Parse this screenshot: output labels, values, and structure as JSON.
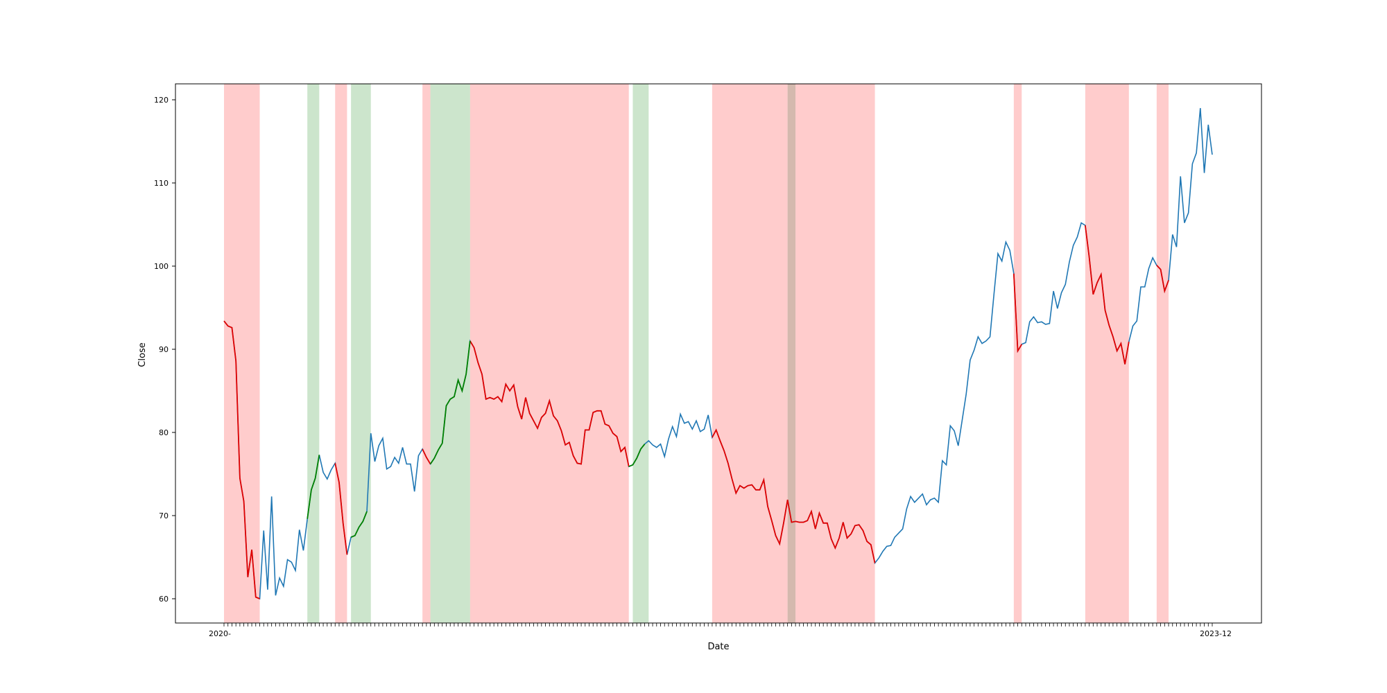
{
  "chart_data": {
    "type": "line",
    "xlabel": "Date",
    "ylabel": "Close",
    "ylim": [
      57,
      122
    ],
    "yticks": [
      60,
      70,
      80,
      90,
      100,
      110,
      120
    ],
    "x_first_label": "2020-",
    "x_last_label": "2023-12",
    "legend": "none",
    "grid": false,
    "colors": {
      "normal": "#1f77b4",
      "down_segment": "#e00000",
      "up_segment": "#008000",
      "down_band": "#ff9999",
      "up_band": "#99cc99"
    },
    "close": [
      93.4,
      92.8,
      92.6,
      88.6,
      74.5,
      71.7,
      62.6,
      65.9,
      60.2,
      60.0,
      68.2,
      61.1,
      72.3,
      60.4,
      62.5,
      61.5,
      64.7,
      64.4,
      63.4,
      68.3,
      65.8,
      69.6,
      73.1,
      74.5,
      77.3,
      75.2,
      74.4,
      75.5,
      76.3,
      74.0,
      69.1,
      65.3,
      67.4,
      67.6,
      68.6,
      69.3,
      70.5,
      79.9,
      76.5,
      78.4,
      79.3,
      75.6,
      75.9,
      77.0,
      76.3,
      78.2,
      76.2,
      76.2,
      72.9,
      77.2,
      78.0,
      77.0,
      76.2,
      76.9,
      77.9,
      78.7,
      83.2,
      84.0,
      84.3,
      86.3,
      85.0,
      87.0,
      91.0,
      90.2,
      88.4,
      87.0,
      84.0,
      84.2,
      84.0,
      84.3,
      83.7,
      85.8,
      85.0,
      85.7,
      83.1,
      81.6,
      84.2,
      82.3,
      81.4,
      80.5,
      81.8,
      82.3,
      83.8,
      82.0,
      81.4,
      80.2,
      78.5,
      78.8,
      77.2,
      76.3,
      76.2,
      80.3,
      80.3,
      82.4,
      82.6,
      82.6,
      81.0,
      80.8,
      79.9,
      79.5,
      77.7,
      78.2,
      75.9,
      76.1,
      76.9,
      78.0,
      78.6,
      79.0,
      78.5,
      78.2,
      78.6,
      77.1,
      79.2,
      80.7,
      79.5,
      82.2,
      81.1,
      81.3,
      80.4,
      81.4,
      80.1,
      80.4,
      82.1,
      79.4,
      80.3,
      79.0,
      77.8,
      76.3,
      74.4,
      72.7,
      73.6,
      73.3,
      73.6,
      73.7,
      73.1,
      73.1,
      74.3,
      71.1,
      69.4,
      67.6,
      66.6,
      69.1,
      71.9,
      69.2,
      69.3,
      69.2,
      69.2,
      69.4,
      70.5,
      68.4,
      70.3,
      69.1,
      69.1,
      67.2,
      66.1,
      67.3,
      69.2,
      67.3,
      67.8,
      68.8,
      68.9,
      68.2,
      66.9,
      66.5,
      64.3,
      64.9,
      65.7,
      66.3,
      66.4,
      67.4,
      67.9,
      68.4,
      70.8,
      72.3,
      71.6,
      72.1,
      72.6,
      71.3,
      71.9,
      72.1,
      71.6,
      76.6,
      76.1,
      80.8,
      80.2,
      78.4,
      81.5,
      84.6,
      88.7,
      89.9,
      91.5,
      90.7,
      91.0,
      91.5,
      96.6,
      101.5,
      100.6,
      102.9,
      101.9,
      99.1,
      89.8,
      90.6,
      90.8,
      93.3,
      93.9,
      93.2,
      93.3,
      93.0,
      93.1,
      97.0,
      94.9,
      96.8,
      97.8,
      100.5,
      102.5,
      103.5,
      105.2,
      104.9,
      101.1,
      96.6,
      98.0,
      99.0,
      94.7,
      92.9,
      91.5,
      89.8,
      90.7,
      88.2,
      90.9,
      92.8,
      93.4,
      97.5,
      97.5,
      99.7,
      101.0,
      100.1,
      99.6,
      97.0,
      98.3,
      103.8,
      102.3,
      110.8,
      105.2,
      106.4,
      112.3,
      113.6,
      119.0,
      111.2,
      117.0,
      113.4
    ],
    "down_segments": [
      [
        0,
        9
      ],
      [
        28,
        31
      ],
      [
        50,
        52
      ],
      [
        62,
        102
      ],
      [
        123,
        142
      ],
      [
        142,
        164
      ],
      [
        199,
        201
      ],
      [
        217,
        228
      ],
      [
        235,
        238
      ]
    ],
    "up_segments": [
      [
        21,
        24
      ],
      [
        32,
        36
      ],
      [
        52,
        62
      ],
      [
        102,
        106
      ]
    ],
    "down_bands": [
      [
        0,
        9
      ],
      [
        28,
        31
      ],
      [
        50,
        52
      ],
      [
        62,
        102
      ],
      [
        123,
        142
      ],
      [
        144,
        164
      ],
      [
        199,
        201
      ],
      [
        217,
        228
      ],
      [
        235,
        238
      ]
    ],
    "up_bands": [
      [
        21,
        24
      ],
      [
        32,
        37
      ],
      [
        52,
        62
      ],
      [
        103,
        107
      ]
    ],
    "overlap_bands": [
      [
        142,
        144
      ]
    ]
  }
}
